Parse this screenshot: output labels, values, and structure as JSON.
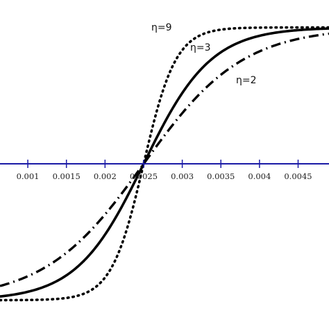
{
  "chart_data": {
    "type": "line",
    "title": "",
    "xlabel": "",
    "ylabel": "",
    "xlim": [
      0.00064,
      0.0049
    ],
    "ylim": [
      -1.05,
      1.05
    ],
    "x_center": 0.0025,
    "x_ticks": [
      {
        "value": 0.001,
        "label": "0.001"
      },
      {
        "value": 0.0015,
        "label": "0.0015"
      },
      {
        "value": 0.002,
        "label": "0.002"
      },
      {
        "value": 0.0025,
        "label": "0.0025"
      },
      {
        "value": 0.003,
        "label": "0.003"
      },
      {
        "value": 0.0035,
        "label": "0.0035"
      },
      {
        "value": 0.004,
        "label": "0.004"
      },
      {
        "value": 0.0045,
        "label": "0.0045"
      }
    ],
    "axis_color": "#1a1aa6",
    "curve_color": "#000000",
    "grid": false,
    "series": [
      {
        "name": "η=9",
        "eta": 9,
        "style": "dotted",
        "x": [
          0.0007,
          0.0015,
          0.0018,
          0.002,
          0.0022,
          0.0025,
          0.0028,
          0.003,
          0.0032,
          0.0035,
          0.0048
        ],
        "y": [
          -1.0,
          -1.0,
          -0.99,
          -0.97,
          -0.83,
          0.0,
          0.83,
          0.97,
          0.99,
          1.0,
          1.0
        ]
      },
      {
        "name": "η=3",
        "eta": 3,
        "style": "solid",
        "x": [
          0.0007,
          0.001,
          0.0015,
          0.002,
          0.0025,
          0.003,
          0.0035,
          0.004,
          0.0045,
          0.0048
        ],
        "y": [
          -0.97,
          -0.95,
          -0.85,
          -0.55,
          0.0,
          0.55,
          0.85,
          0.95,
          0.99,
          1.0
        ]
      },
      {
        "name": "η=2",
        "eta": 2,
        "style": "dash-dot",
        "x": [
          0.0007,
          0.001,
          0.0015,
          0.002,
          0.0025,
          0.003,
          0.0035,
          0.004,
          0.0045,
          0.0048
        ],
        "y": [
          -0.85,
          -0.79,
          -0.65,
          -0.38,
          0.0,
          0.38,
          0.65,
          0.79,
          0.9,
          0.93
        ]
      }
    ],
    "annotations": [
      {
        "text": "η=9",
        "series": "η=9"
      },
      {
        "text": "η=3",
        "series": "η=3"
      },
      {
        "text": "η=2",
        "series": "η=2"
      }
    ]
  }
}
